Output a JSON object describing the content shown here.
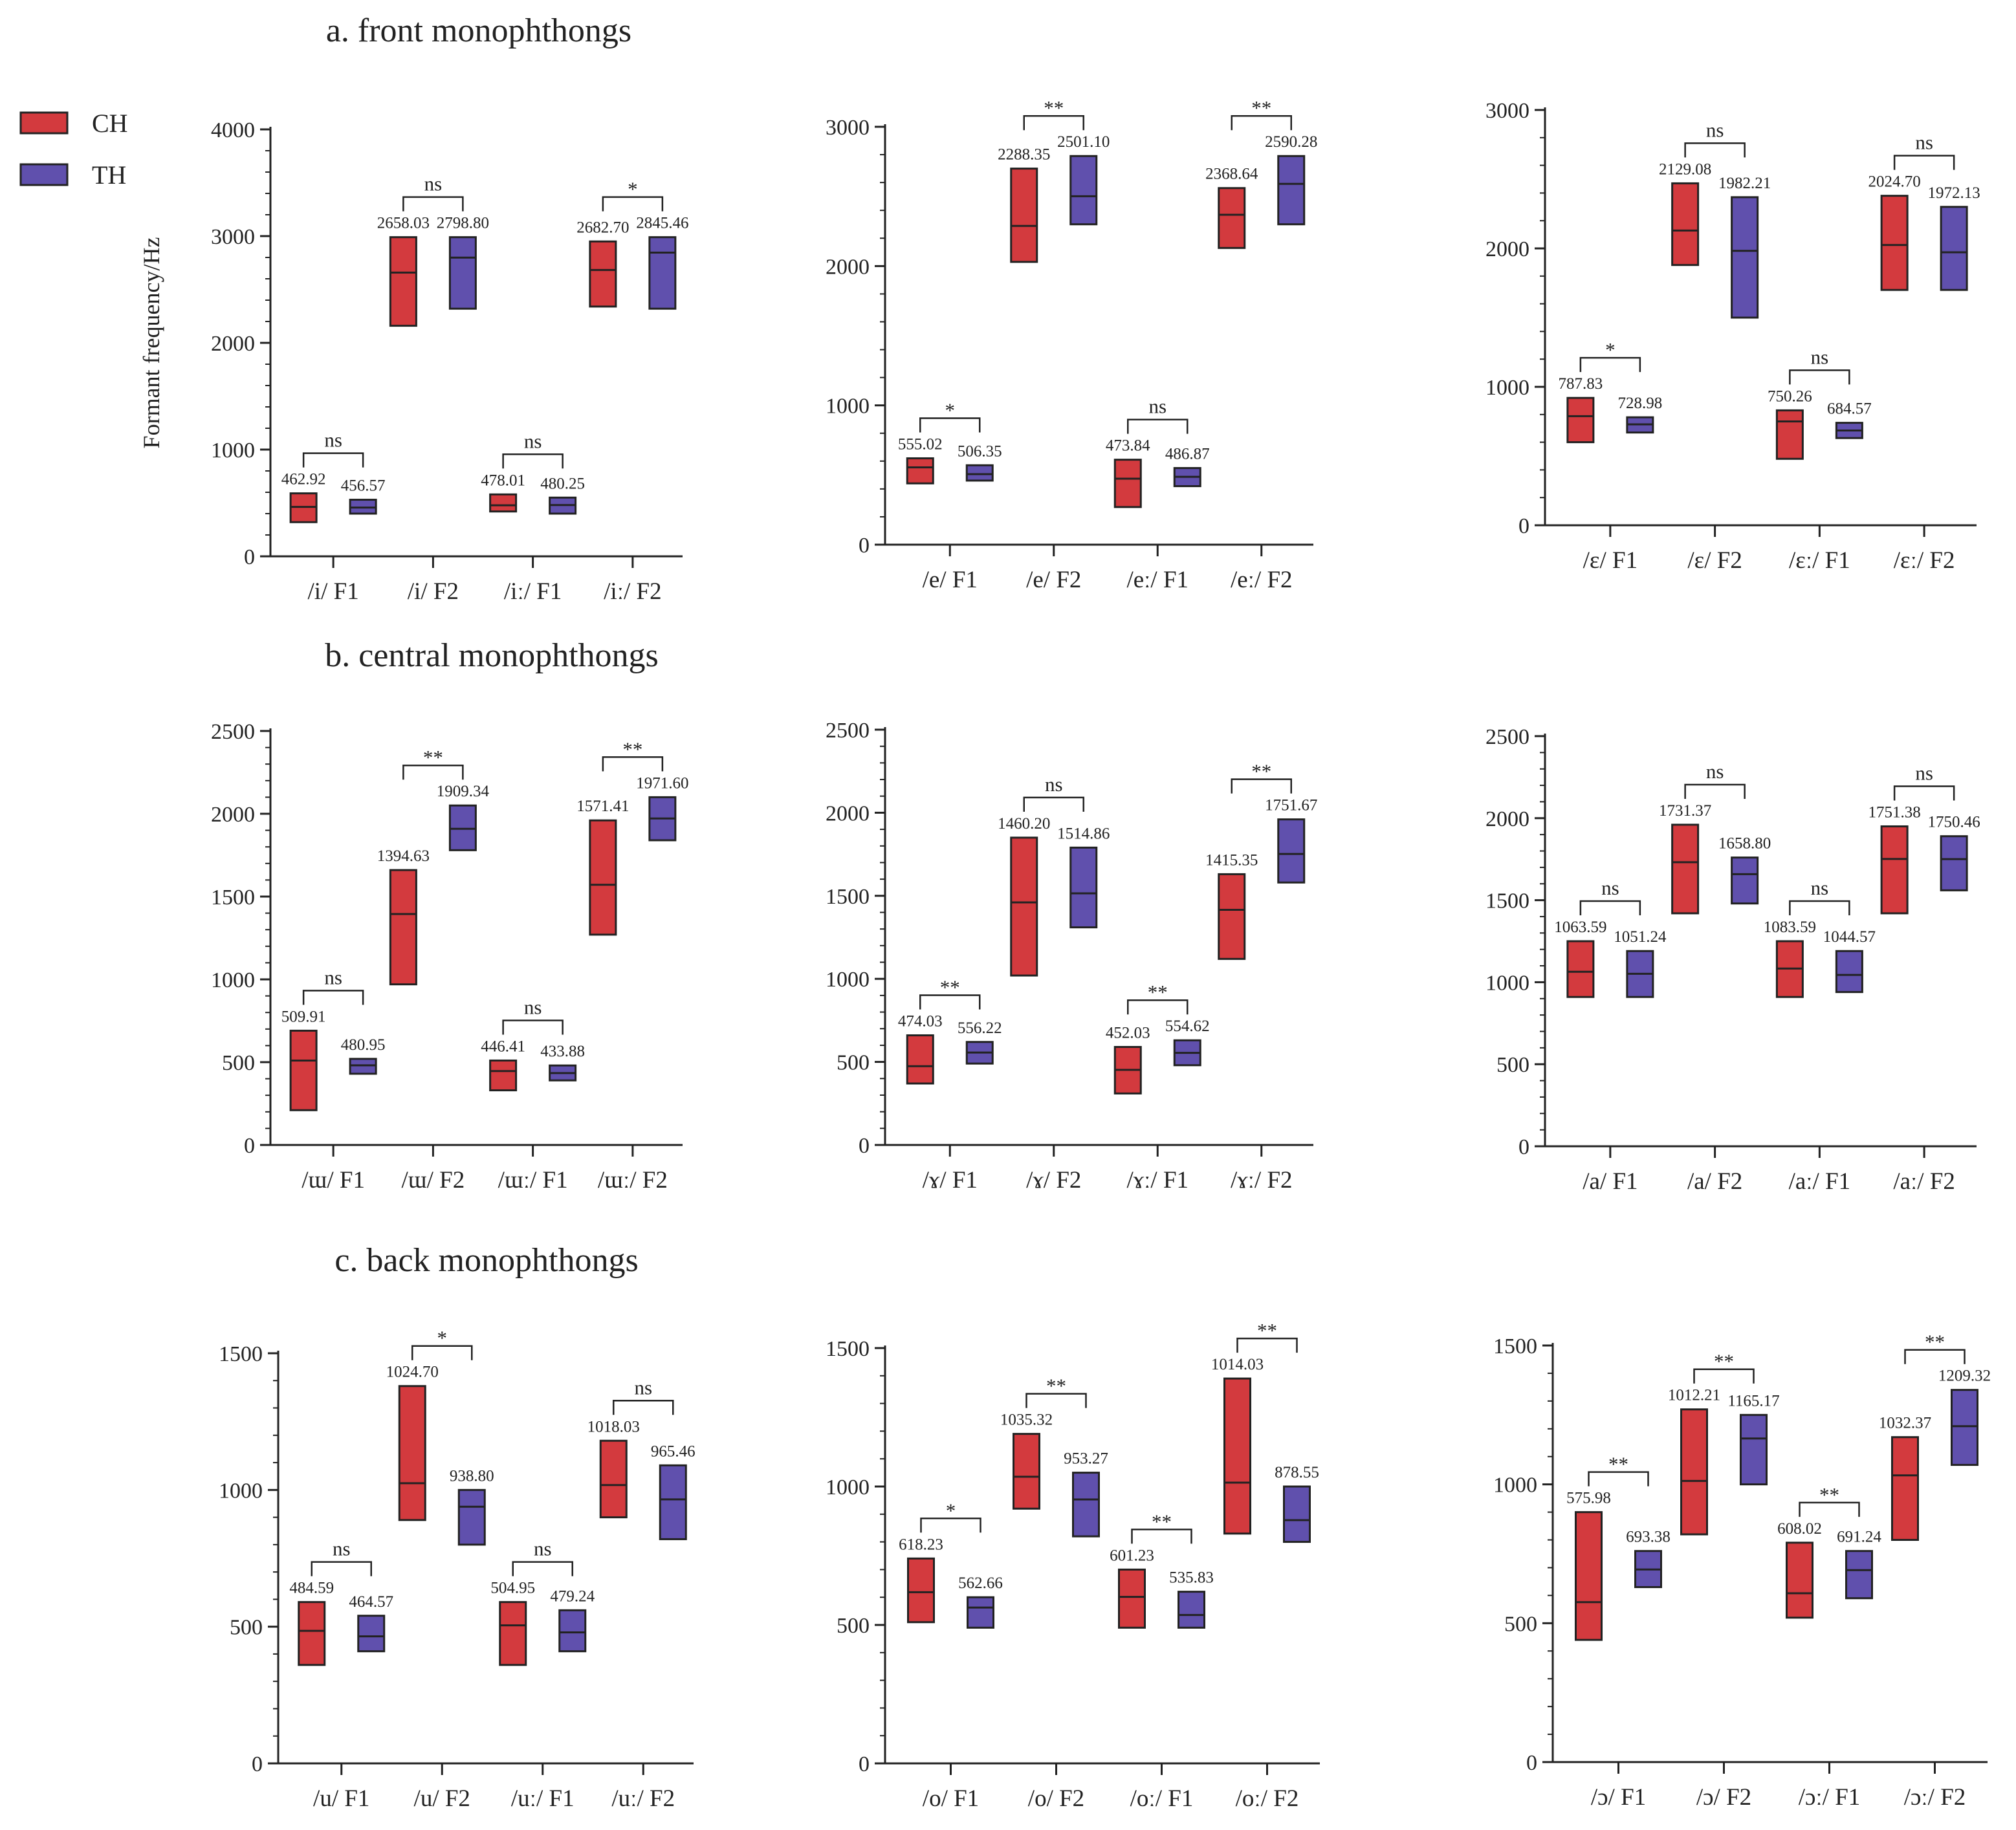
{
  "figure": {
    "sections": [
      {
        "key": "a",
        "title": "a. front monophthongs"
      },
      {
        "key": "b",
        "title": "b. central monophthongs"
      },
      {
        "key": "c",
        "title": "c. back monophthongs"
      }
    ],
    "y_axis_title": "Formant frequency/Hz",
    "legend": [
      {
        "name": "CH",
        "color": "#d33a3e"
      },
      {
        "name": "TH",
        "color": "#6050ad"
      }
    ]
  },
  "chart_data": [
    {
      "type": "box",
      "panel": "a1",
      "ylim": [
        0,
        4000
      ],
      "yticks": [
        0,
        1000,
        2000,
        3000,
        4000
      ],
      "categories": [
        "/i/ F1",
        "/i/ F2",
        "/iː/ F1",
        "/iː/ F2"
      ],
      "series": [
        {
          "name": "CH",
          "values": [
            {
              "low": 320,
              "median": 462.92,
              "high": 590,
              "label": "462.92"
            },
            {
              "low": 2160,
              "median": 2658.03,
              "high": 2990,
              "label": "2658.03"
            },
            {
              "low": 420,
              "median": 478.01,
              "high": 580,
              "label": "478.01"
            },
            {
              "low": 2340,
              "median": 2682.7,
              "high": 2950,
              "label": "2682.70"
            }
          ]
        },
        {
          "name": "TH",
          "values": [
            {
              "low": 400,
              "median": 456.57,
              "high": 530,
              "label": "456.57"
            },
            {
              "low": 2320,
              "median": 2798.8,
              "high": 2990,
              "label": "2798.80"
            },
            {
              "low": 400,
              "median": 480.25,
              "high": 550,
              "label": "480.25"
            },
            {
              "low": 2320,
              "median": 2845.46,
              "high": 2990,
              "label": "2845.46"
            }
          ]
        }
      ],
      "significance": [
        "ns",
        "ns",
        "ns",
        "*"
      ]
    },
    {
      "type": "box",
      "panel": "a2",
      "ylim": [
        0,
        3000
      ],
      "yticks": [
        0,
        1000,
        2000,
        3000
      ],
      "categories": [
        "/e/ F1",
        "/e/ F2",
        "/eː/ F1",
        "/eː/ F2"
      ],
      "series": [
        {
          "name": "CH",
          "values": [
            {
              "low": 440,
              "median": 555.02,
              "high": 620,
              "label": "555.02"
            },
            {
              "low": 2030,
              "median": 2288.35,
              "high": 2700,
              "label": "2288.35"
            },
            {
              "low": 270,
              "median": 473.84,
              "high": 610,
              "label": "473.84"
            },
            {
              "low": 2130,
              "median": 2368.64,
              "high": 2560,
              "label": "2368.64"
            }
          ]
        },
        {
          "name": "TH",
          "values": [
            {
              "low": 460,
              "median": 506.35,
              "high": 570,
              "label": "506.35"
            },
            {
              "low": 2300,
              "median": 2501.1,
              "high": 2790,
              "label": "2501.10"
            },
            {
              "low": 420,
              "median": 486.87,
              "high": 550,
              "label": "486.87"
            },
            {
              "low": 2300,
              "median": 2590.28,
              "high": 2790,
              "label": "2590.28"
            }
          ]
        }
      ],
      "significance": [
        "*",
        "**",
        "ns",
        "**"
      ]
    },
    {
      "type": "box",
      "panel": "a3",
      "ylim": [
        0,
        3000
      ],
      "yticks": [
        0,
        1000,
        2000,
        3000
      ],
      "categories": [
        "/ɛ/ F1",
        "/ɛ/ F2",
        "/ɛː/ F1",
        "/ɛː/ F2"
      ],
      "series": [
        {
          "name": "CH",
          "values": [
            {
              "low": 600,
              "median": 787.83,
              "high": 920,
              "label": "787.83"
            },
            {
              "low": 1880,
              "median": 2129.08,
              "high": 2470,
              "label": "2129.08"
            },
            {
              "low": 480,
              "median": 750.26,
              "high": 830,
              "label": "750.26"
            },
            {
              "low": 1700,
              "median": 2024.7,
              "high": 2380,
              "label": "2024.70"
            }
          ]
        },
        {
          "name": "TH",
          "values": [
            {
              "low": 670,
              "median": 728.98,
              "high": 780,
              "label": "728.98"
            },
            {
              "low": 1500,
              "median": 1982.21,
              "high": 2370,
              "label": "1982.21"
            },
            {
              "low": 630,
              "median": 684.57,
              "high": 740,
              "label": "684.57"
            },
            {
              "low": 1700,
              "median": 1972.13,
              "high": 2300,
              "label": "1972.13"
            }
          ]
        }
      ],
      "significance": [
        "*",
        "ns",
        "ns",
        "ns"
      ]
    },
    {
      "type": "box",
      "panel": "b1",
      "ylim": [
        0,
        2500
      ],
      "yticks": [
        0,
        500,
        1000,
        1500,
        2000,
        2500
      ],
      "categories": [
        "/ɯ/ F1",
        "/ɯ/ F2",
        "/ɯː/ F1",
        "/ɯː/ F2"
      ],
      "series": [
        {
          "name": "CH",
          "values": [
            {
              "low": 210,
              "median": 509.91,
              "high": 690,
              "label": "509.91"
            },
            {
              "low": 970,
              "median": 1394.63,
              "high": 1660,
              "label": "1394.63"
            },
            {
              "low": 330,
              "median": 446.41,
              "high": 510,
              "label": "446.41"
            },
            {
              "low": 1270,
              "median": 1571.41,
              "high": 1960,
              "label": "1571.41"
            }
          ]
        },
        {
          "name": "TH",
          "values": [
            {
              "low": 430,
              "median": 480.95,
              "high": 520,
              "label": "480.95"
            },
            {
              "low": 1780,
              "median": 1909.34,
              "high": 2050,
              "label": "1909.34"
            },
            {
              "low": 390,
              "median": 433.88,
              "high": 480,
              "label": "433.88"
            },
            {
              "low": 1840,
              "median": 1971.6,
              "high": 2100,
              "label": "1971.60"
            }
          ]
        }
      ],
      "significance": [
        "ns",
        "**",
        "ns",
        "**"
      ]
    },
    {
      "type": "box",
      "panel": "b2",
      "ylim": [
        0,
        2500
      ],
      "yticks": [
        0,
        500,
        1000,
        1500,
        2000,
        2500
      ],
      "categories": [
        "/ɤ/ F1",
        "/ɤ/ F2",
        "/ɤː/ F1",
        "/ɤː/ F2"
      ],
      "series": [
        {
          "name": "CH",
          "values": [
            {
              "low": 370,
              "median": 474.03,
              "high": 660,
              "label": "474.03"
            },
            {
              "low": 1020,
              "median": 1460.2,
              "high": 1850,
              "label": "1460.20"
            },
            {
              "low": 310,
              "median": 452.03,
              "high": 590,
              "label": "452.03"
            },
            {
              "low": 1120,
              "median": 1415.35,
              "high": 1630,
              "label": "1415.35"
            }
          ]
        },
        {
          "name": "TH",
          "values": [
            {
              "low": 490,
              "median": 556.22,
              "high": 620,
              "label": "556.22"
            },
            {
              "low": 1310,
              "median": 1514.86,
              "high": 1790,
              "label": "1514.86"
            },
            {
              "low": 480,
              "median": 554.62,
              "high": 630,
              "label": "554.62"
            },
            {
              "low": 1580,
              "median": 1751.67,
              "high": 1960,
              "label": "1751.67"
            }
          ]
        }
      ],
      "significance": [
        "**",
        "ns",
        "**",
        "**"
      ]
    },
    {
      "type": "box",
      "panel": "b3",
      "ylim": [
        0,
        2500
      ],
      "yticks": [
        0,
        500,
        1000,
        1500,
        2000,
        2500
      ],
      "categories": [
        "/a/ F1",
        "/a/ F2",
        "/aː/ F1",
        "/aː/ F2"
      ],
      "series": [
        {
          "name": "CH",
          "values": [
            {
              "low": 910,
              "median": 1063.59,
              "high": 1250,
              "label": "1063.59"
            },
            {
              "low": 1420,
              "median": 1731.37,
              "high": 1960,
              "label": "1731.37"
            },
            {
              "low": 910,
              "median": 1083.59,
              "high": 1250,
              "label": "1083.59"
            },
            {
              "low": 1420,
              "median": 1751.38,
              "high": 1950,
              "label": "1751.38"
            }
          ]
        },
        {
          "name": "TH",
          "values": [
            {
              "low": 910,
              "median": 1051.24,
              "high": 1190,
              "label": "1051.24"
            },
            {
              "low": 1480,
              "median": 1658.8,
              "high": 1760,
              "label": "1658.80"
            },
            {
              "low": 940,
              "median": 1044.57,
              "high": 1190,
              "label": "1044.57"
            },
            {
              "low": 1560,
              "median": 1750.46,
              "high": 1890,
              "label": "1750.46"
            }
          ]
        }
      ],
      "significance": [
        "ns",
        "ns",
        "ns",
        "ns"
      ]
    },
    {
      "type": "box",
      "panel": "c1",
      "ylim": [
        0,
        1500
      ],
      "yticks": [
        0,
        500,
        1000,
        1500
      ],
      "categories": [
        "/u/ F1",
        "/u/ F2",
        "/uː/ F1",
        "/uː/ F2"
      ],
      "series": [
        {
          "name": "CH",
          "values": [
            {
              "low": 360,
              "median": 484.59,
              "high": 590,
              "label": "484.59"
            },
            {
              "low": 890,
              "median": 1024.7,
              "high": 1380,
              "label": "1024.70"
            },
            {
              "low": 360,
              "median": 504.95,
              "high": 590,
              "label": "504.95"
            },
            {
              "low": 900,
              "median": 1018.03,
              "high": 1180,
              "label": "1018.03"
            }
          ]
        },
        {
          "name": "TH",
          "values": [
            {
              "low": 410,
              "median": 464.57,
              "high": 540,
              "label": "464.57"
            },
            {
              "low": 800,
              "median": 938.8,
              "high": 1000,
              "label": "938.80"
            },
            {
              "low": 410,
              "median": 479.24,
              "high": 560,
              "label": "479.24"
            },
            {
              "low": 820,
              "median": 965.46,
              "high": 1090,
              "label": "965.46"
            }
          ]
        }
      ],
      "significance": [
        "ns",
        "*",
        "ns",
        "ns"
      ]
    },
    {
      "type": "box",
      "panel": "c2",
      "ylim": [
        0,
        1500
      ],
      "yticks": [
        0,
        500,
        1000,
        1500
      ],
      "categories": [
        "/o/ F1",
        "/o/ F2",
        "/oː/ F1",
        "/oː/ F2"
      ],
      "series": [
        {
          "name": "CH",
          "values": [
            {
              "low": 510,
              "median": 618.23,
              "high": 740,
              "label": "618.23"
            },
            {
              "low": 920,
              "median": 1035.32,
              "high": 1190,
              "label": "1035.32"
            },
            {
              "low": 490,
              "median": 601.23,
              "high": 700,
              "label": "601.23"
            },
            {
              "low": 830,
              "median": 1014.03,
              "high": 1390,
              "label": "1014.03"
            }
          ]
        },
        {
          "name": "TH",
          "values": [
            {
              "low": 490,
              "median": 562.66,
              "high": 600,
              "label": "562.66"
            },
            {
              "low": 820,
              "median": 953.27,
              "high": 1050,
              "label": "953.27"
            },
            {
              "low": 490,
              "median": 535.83,
              "high": 620,
              "label": "535.83"
            },
            {
              "low": 800,
              "median": 878.55,
              "high": 1000,
              "label": "878.55"
            }
          ]
        }
      ],
      "significance": [
        "*",
        "**",
        "**",
        "**"
      ]
    },
    {
      "type": "box",
      "panel": "c3",
      "ylim": [
        0,
        1500
      ],
      "yticks": [
        0,
        500,
        1000,
        1500
      ],
      "categories": [
        "/ɔ/ F1",
        "/ɔ/ F2",
        "/ɔː/ F1",
        "/ɔː/ F2"
      ],
      "series": [
        {
          "name": "CH",
          "values": [
            {
              "low": 440,
              "median": 575.98,
              "high": 900,
              "label": "575.98"
            },
            {
              "low": 820,
              "median": 1012.21,
              "high": 1270,
              "label": "1012.21"
            },
            {
              "low": 520,
              "median": 608.02,
              "high": 790,
              "label": "608.02"
            },
            {
              "low": 800,
              "median": 1032.37,
              "high": 1170,
              "label": "1032.37"
            }
          ]
        },
        {
          "name": "TH",
          "values": [
            {
              "low": 630,
              "median": 693.38,
              "high": 760,
              "label": "693.38"
            },
            {
              "low": 1000,
              "median": 1165.17,
              "high": 1250,
              "label": "1165.17"
            },
            {
              "low": 590,
              "median": 691.24,
              "high": 760,
              "label": "691.24"
            },
            {
              "low": 1070,
              "median": 1209.32,
              "high": 1340,
              "label": "1209.32"
            }
          ]
        }
      ],
      "significance": [
        "**",
        "**",
        "**",
        "**"
      ]
    }
  ]
}
